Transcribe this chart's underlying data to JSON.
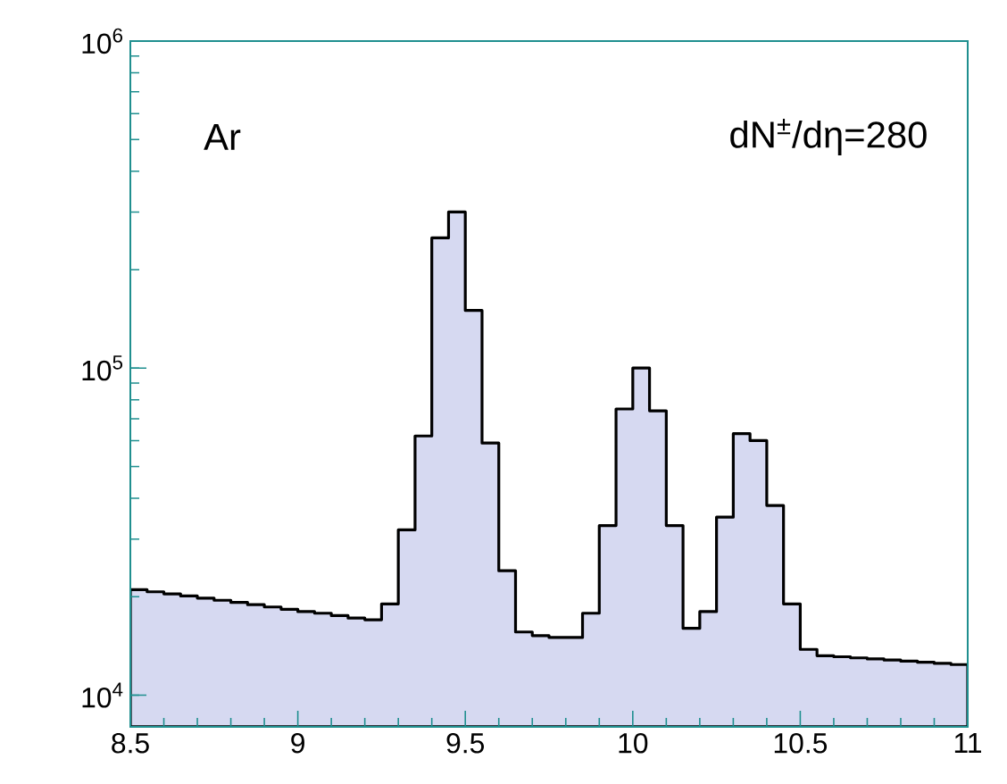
{
  "chart_data": {
    "type": "histogram",
    "bins": [
      8.5,
      8.55,
      8.6,
      8.65,
      8.7,
      8.75,
      8.8,
      8.85,
      8.9,
      8.95,
      9.0,
      9.05,
      9.1,
      9.15,
      9.2,
      9.25,
      9.3,
      9.35,
      9.4,
      9.45,
      9.5,
      9.55,
      9.6,
      9.65,
      9.7,
      9.75,
      9.8,
      9.85,
      9.9,
      9.95,
      10.0,
      10.05,
      10.1,
      10.15,
      10.2,
      10.25,
      10.3,
      10.35,
      10.4,
      10.45,
      10.5,
      10.55,
      10.6,
      10.65,
      10.7,
      10.75,
      10.8,
      10.85,
      10.9,
      10.95,
      11.0
    ],
    "values": [
      21000,
      20700,
      20400,
      20100,
      19800,
      19500,
      19200,
      18900,
      18600,
      18300,
      18000,
      17800,
      17500,
      17200,
      17000,
      19000,
      32000,
      62000,
      250000,
      300000,
      150000,
      59000,
      24000,
      15600,
      15200,
      15000,
      15000,
      17800,
      33000,
      75000,
      100000,
      74000,
      33000,
      16000,
      18000,
      35000,
      63000,
      60000,
      38000,
      19000,
      13800,
      13200,
      13100,
      13000,
      12900,
      12800,
      12700,
      12600,
      12500,
      12400
    ],
    "color": "#d6d9f1",
    "xlim": [
      8.5,
      11
    ],
    "xticks": [
      8.5,
      9,
      9.5,
      10,
      10.5,
      11
    ],
    "ylim": [
      8000,
      1000000
    ],
    "log": true,
    "yticks": [
      {
        "value": 10000,
        "label": "10$^{4}$"
      },
      {
        "value": 100000,
        "label": "10$^{5}$"
      },
      {
        "value": 1000000,
        "label": "10$^{6}$"
      }
    ],
    "annotations": [
      "Ar",
      "dN$^{±}$/dη=280"
    ]
  }
}
